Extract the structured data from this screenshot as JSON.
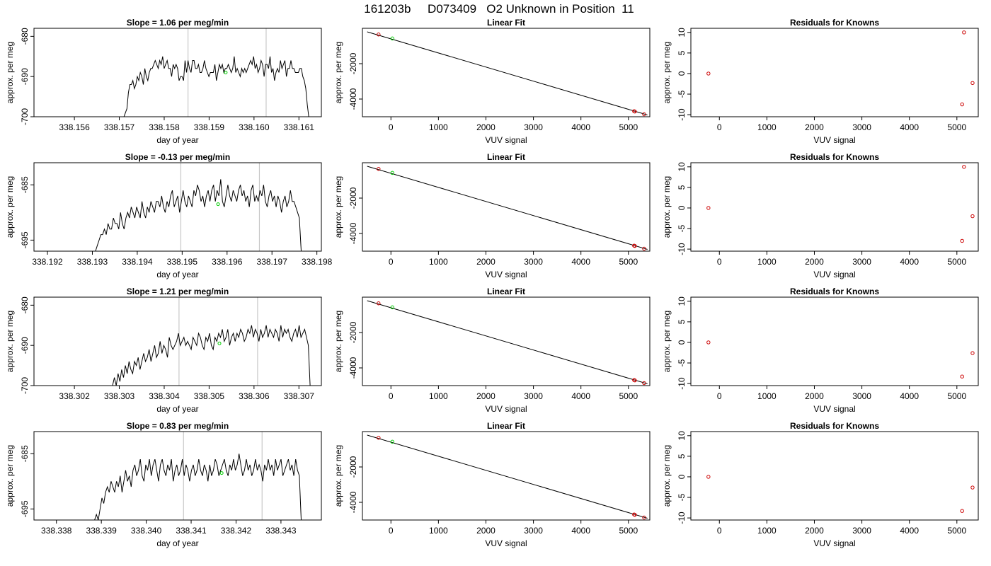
{
  "figure_title": "161203b     D073409   O2 Unknown in Position  11",
  "chart_data": [
    {
      "type": "line",
      "panel": "slope",
      "row": 1,
      "title": "Slope =  1.06  per meg/min",
      "xlabel": "day of year",
      "ylabel": "approx. per meg",
      "xlim": [
        338.1551,
        338.1615
      ],
      "ylim": [
        -700,
        -678
      ],
      "xticks": [
        "338.156",
        "338.157",
        "338.158",
        "338.159",
        "338.160",
        "338.161"
      ],
      "yticks": [
        "-680",
        "-690",
        "-700"
      ],
      "series_start": 338.15707,
      "series_end": 338.16122,
      "y_values": [
        -700,
        -700,
        -699,
        -698,
        -694,
        -692,
        -692,
        -691,
        -693,
        -692,
        -690,
        -691,
        -689,
        -690,
        -692,
        -688,
        -690,
        -691,
        -689,
        -688,
        -688,
        -687,
        -686,
        -687,
        -688,
        -686,
        -687,
        -685,
        -688,
        -687,
        -686,
        -688,
        -688,
        -690,
        -687,
        -688,
        -687,
        -688,
        -691,
        -690,
        -690,
        -691,
        -686,
        -689,
        -686,
        -688,
        -689,
        -686,
        -686,
        -688,
        -688,
        -687,
        -689,
        -689,
        -688,
        -686,
        -688,
        -689,
        -690,
        -689,
        -689,
        -689,
        -687,
        -691,
        -689,
        -687,
        -688,
        -687,
        -689,
        -688,
        -688,
        -687,
        -688,
        -689,
        -688,
        -685,
        -689,
        -688,
        -689,
        -690,
        -688,
        -689,
        -688,
        -689,
        -688,
        -687,
        -686,
        -687,
        -685,
        -688,
        -687,
        -689,
        -688,
        -686,
        -687,
        -690,
        -687,
        -687,
        -688,
        -685,
        -689,
        -688,
        -691,
        -689,
        -688,
        -689,
        -686,
        -688,
        -687,
        -686,
        -690,
        -688,
        -688,
        -686,
        -688,
        -688,
        -689,
        -689,
        -689,
        -688,
        -688,
        -690,
        -691,
        -693,
        -697,
        -700
      ],
      "vlines": [
        338.15853,
        338.16027
      ],
      "marker": {
        "x": 338.15937,
        "y": -689,
        "color": "#00cc00"
      }
    },
    {
      "type": "scatter",
      "panel": "linear_fit",
      "row": 1,
      "title": "Linear Fit",
      "xlabel": "VUV signal",
      "ylabel": "approx. per meg",
      "xlim": [
        -600,
        5450
      ],
      "ylim": [
        -5000,
        0
      ],
      "xticks": [
        "0",
        "1000",
        "2000",
        "3000",
        "4000",
        "5000"
      ],
      "yticks": [
        "-2000",
        "-4000"
      ],
      "line": {
        "x": [
          -500,
          5400
        ],
        "y": [
          -200,
          -4900
        ]
      },
      "points": [
        {
          "x": -260,
          "y": -350
        },
        {
          "x": 5120,
          "y": -4690
        },
        {
          "x": 5135,
          "y": -4705
        },
        {
          "x": 5330,
          "y": -4860
        }
      ],
      "unknown": {
        "x": 30,
        "y": -575
      },
      "point_color": "#cc0000",
      "unknown_color": "#00cc00"
    },
    {
      "type": "scatter",
      "panel": "residuals",
      "row": 1,
      "title": "Residuals for Knowns",
      "xlabel": "VUV signal",
      "ylabel": "approx. per meg",
      "xlim": [
        -600,
        5450
      ],
      "ylim": [
        -10.5,
        11
      ],
      "xticks": [
        "0",
        "1000",
        "2000",
        "3000",
        "4000",
        "5000"
      ],
      "yticks": [
        "10",
        "5",
        "0",
        "-5",
        "-10"
      ],
      "points": [
        {
          "x": -230,
          "y": 0
        },
        {
          "x": 5150,
          "y": 10
        },
        {
          "x": 5110,
          "y": -7.5
        },
        {
          "x": 5330,
          "y": -2.3
        }
      ],
      "point_color": "#cc0000"
    },
    {
      "type": "line",
      "panel": "slope",
      "row": 2,
      "title": "Slope =  -0.13  per meg/min",
      "xlabel": "day of year",
      "ylabel": "approx. per meg",
      "xlim": [
        338.1917,
        338.1981
      ],
      "ylim": [
        -697,
        -681
      ],
      "xticks": [
        "338.192",
        "338.193",
        "338.194",
        "338.195",
        "338.196",
        "338.197",
        "338.198"
      ],
      "yticks": [
        "-685",
        "-695"
      ],
      "series_start": 338.19307,
      "series_end": 338.19765,
      "y_values": [
        -697,
        -696,
        -695,
        -694,
        -694,
        -693,
        -694,
        -692,
        -693,
        -693,
        -691,
        -692,
        -692,
        -693,
        -690,
        -692,
        -693,
        -691,
        -690,
        -691,
        -689,
        -690,
        -691,
        -689,
        -690,
        -691,
        -688,
        -690,
        -691,
        -689,
        -690,
        -688,
        -689,
        -690,
        -688,
        -688,
        -689,
        -687,
        -689,
        -690,
        -688,
        -689,
        -687,
        -686,
        -689,
        -688,
        -687,
        -690,
        -688,
        -686,
        -688,
        -689,
        -687,
        -688,
        -689,
        -686,
        -687,
        -685,
        -686,
        -688,
        -687,
        -689,
        -687,
        -686,
        -688,
        -686,
        -685,
        -688,
        -686,
        -687,
        -684,
        -688,
        -689,
        -687,
        -685,
        -687,
        -688,
        -686,
        -687,
        -688,
        -686,
        -685,
        -687,
        -686,
        -688,
        -687,
        -689,
        -686,
        -685,
        -688,
        -687,
        -688,
        -686,
        -687,
        -685,
        -688,
        -689,
        -687,
        -686,
        -688,
        -687,
        -689,
        -687,
        -688,
        -690,
        -688,
        -687,
        -689,
        -688,
        -686,
        -688,
        -688,
        -689,
        -690,
        -691,
        -697
      ],
      "vlines": [
        338.19497,
        338.19672
      ],
      "marker": {
        "x": 338.1958,
        "y": -688.5,
        "color": "#00cc00"
      }
    },
    {
      "type": "scatter",
      "panel": "linear_fit",
      "row": 2,
      "title": "Linear Fit",
      "xlabel": "VUV signal",
      "ylabel": "approx. per meg",
      "xlim": [
        -600,
        5450
      ],
      "ylim": [
        -5000,
        0
      ],
      "xticks": [
        "0",
        "1000",
        "2000",
        "3000",
        "4000",
        "5000"
      ],
      "yticks": [
        "-2000",
        "-4000"
      ],
      "line": {
        "x": [
          -500,
          5400
        ],
        "y": [
          -200,
          -4900
        ]
      },
      "points": [
        {
          "x": -260,
          "y": -350
        },
        {
          "x": 5120,
          "y": -4690
        },
        {
          "x": 5135,
          "y": -4705
        },
        {
          "x": 5330,
          "y": -4860
        }
      ],
      "unknown": {
        "x": 30,
        "y": -575
      },
      "point_color": "#cc0000",
      "unknown_color": "#00cc00"
    },
    {
      "type": "scatter",
      "panel": "residuals",
      "row": 2,
      "title": "Residuals for Knowns",
      "xlabel": "VUV signal",
      "ylabel": "approx. per meg",
      "xlim": [
        -600,
        5450
      ],
      "ylim": [
        -10.5,
        11
      ],
      "xticks": [
        "0",
        "1000",
        "2000",
        "3000",
        "4000",
        "5000"
      ],
      "yticks": [
        "10",
        "5",
        "0",
        "-5",
        "-10"
      ],
      "points": [
        {
          "x": -230,
          "y": 0
        },
        {
          "x": 5150,
          "y": 10
        },
        {
          "x": 5110,
          "y": -8
        },
        {
          "x": 5330,
          "y": -2
        }
      ],
      "point_color": "#cc0000"
    },
    {
      "type": "line",
      "panel": "slope",
      "row": 3,
      "title": "Slope =  1.21  per meg/min",
      "xlabel": "day of year",
      "ylabel": "approx. per meg",
      "xlim": [
        338.3011,
        338.3075
      ],
      "ylim": [
        -700,
        -678
      ],
      "xticks": [
        "338.302",
        "338.303",
        "338.304",
        "338.305",
        "338.306",
        "338.307"
      ],
      "yticks": [
        "-680",
        "-690",
        "-700"
      ],
      "series_start": 338.30285,
      "series_end": 338.30725,
      "y_values": [
        -700,
        -698,
        -700,
        -697,
        -699,
        -696,
        -698,
        -695,
        -697,
        -694,
        -696,
        -697,
        -694,
        -695,
        -693,
        -696,
        -694,
        -692,
        -694,
        -693,
        -691,
        -694,
        -692,
        -690,
        -693,
        -692,
        -689,
        -692,
        -690,
        -691,
        -693,
        -688,
        -690,
        -691,
        -690,
        -689,
        -687,
        -690,
        -689,
        -688,
        -690,
        -689,
        -690,
        -691,
        -688,
        -689,
        -690,
        -687,
        -688,
        -690,
        -691,
        -688,
        -689,
        -687,
        -690,
        -691,
        -688,
        -689,
        -687,
        -688,
        -686,
        -689,
        -688,
        -686,
        -690,
        -688,
        -687,
        -689,
        -687,
        -688,
        -686,
        -687,
        -689,
        -688,
        -686,
        -687,
        -685,
        -688,
        -686,
        -687,
        -689,
        -686,
        -688,
        -687,
        -685,
        -688,
        -686,
        -687,
        -688,
        -686,
        -687,
        -689,
        -685,
        -688,
        -686,
        -687,
        -686,
        -688,
        -689,
        -687,
        -686,
        -688,
        -685,
        -688,
        -687,
        -686,
        -688,
        -690,
        -700
      ],
      "vlines": [
        338.30433,
        338.30608
      ],
      "marker": {
        "x": 338.30523,
        "y": -689.5,
        "color": "#00cc00"
      }
    },
    {
      "type": "scatter",
      "panel": "linear_fit",
      "row": 3,
      "title": "Linear Fit",
      "xlabel": "VUV signal",
      "ylabel": "approx. per meg",
      "xlim": [
        -600,
        5450
      ],
      "ylim": [
        -5000,
        0
      ],
      "xticks": [
        "0",
        "1000",
        "2000",
        "3000",
        "4000",
        "5000"
      ],
      "yticks": [
        "-2000",
        "-4000"
      ],
      "line": {
        "x": [
          -500,
          5400
        ],
        "y": [
          -200,
          -4900
        ]
      },
      "points": [
        {
          "x": -260,
          "y": -350
        },
        {
          "x": 5120,
          "y": -4690
        },
        {
          "x": 5135,
          "y": -4705
        },
        {
          "x": 5330,
          "y": -4860
        }
      ],
      "unknown": {
        "x": 30,
        "y": -575
      },
      "point_color": "#cc0000",
      "unknown_color": "#00cc00"
    },
    {
      "type": "scatter",
      "panel": "residuals",
      "row": 3,
      "title": "Residuals for Knowns",
      "xlabel": "VUV signal",
      "ylabel": "approx. per meg",
      "xlim": [
        -600,
        5450
      ],
      "ylim": [
        -10.5,
        11
      ],
      "xticks": [
        "0",
        "1000",
        "2000",
        "3000",
        "4000",
        "5000"
      ],
      "yticks": [
        "10",
        "5",
        "0",
        "-5",
        "-10"
      ],
      "points": [
        {
          "x": -230,
          "y": 0
        },
        {
          "x": 5110,
          "y": -8.3
        },
        {
          "x": 5330,
          "y": -2.6
        }
      ],
      "point_color": "#cc0000"
    },
    {
      "type": "line",
      "panel": "slope",
      "row": 4,
      "title": "Slope =  0.83  per meg/min",
      "xlabel": "day of year",
      "ylabel": "approx. per meg",
      "xlim": [
        338.3375,
        338.3439
      ],
      "ylim": [
        -697,
        -681
      ],
      "xticks": [
        "338.338",
        "338.339",
        "338.340",
        "338.341",
        "338.342",
        "338.343"
      ],
      "yticks": [
        "-685",
        "-695"
      ],
      "series_start": 338.33885,
      "series_end": 338.34345,
      "y_values": [
        -697,
        -696,
        -697,
        -695,
        -693,
        -694,
        -692,
        -691,
        -692,
        -690,
        -691,
        -692,
        -690,
        -691,
        -689,
        -692,
        -690,
        -688,
        -690,
        -689,
        -691,
        -688,
        -687,
        -689,
        -688,
        -686,
        -689,
        -690,
        -687,
        -688,
        -686,
        -689,
        -687,
        -686,
        -688,
        -690,
        -687,
        -686,
        -688,
        -689,
        -687,
        -688,
        -686,
        -690,
        -688,
        -687,
        -689,
        -688,
        -686,
        -689,
        -687,
        -688,
        -690,
        -688,
        -687,
        -689,
        -688,
        -686,
        -688,
        -689,
        -687,
        -688,
        -690,
        -687,
        -689,
        -688,
        -686,
        -687,
        -689,
        -688,
        -687,
        -686,
        -688,
        -689,
        -687,
        -688,
        -686,
        -688,
        -687,
        -685,
        -687,
        -689,
        -688,
        -686,
        -688,
        -687,
        -689,
        -688,
        -686,
        -688,
        -687,
        -688,
        -690,
        -687,
        -688,
        -686,
        -688,
        -687,
        -689,
        -686,
        -688,
        -687,
        -686,
        -689,
        -688,
        -687,
        -686,
        -688,
        -687,
        -689,
        -686,
        -688,
        -689,
        -697
      ],
      "vlines": [
        338.34083,
        338.34258
      ],
      "marker": {
        "x": 338.34168,
        "y": -688.5,
        "color": "#00cc00"
      }
    },
    {
      "type": "scatter",
      "panel": "linear_fit",
      "row": 4,
      "title": "Linear Fit",
      "xlabel": "VUV signal",
      "ylabel": "approx. per meg",
      "xlim": [
        -600,
        5450
      ],
      "ylim": [
        -5000,
        0
      ],
      "xticks": [
        "0",
        "1000",
        "2000",
        "3000",
        "4000",
        "5000"
      ],
      "yticks": [
        "-2000",
        "-4000"
      ],
      "line": {
        "x": [
          -500,
          5400
        ],
        "y": [
          -200,
          -4900
        ]
      },
      "points": [
        {
          "x": -260,
          "y": -350
        },
        {
          "x": 5120,
          "y": -4690
        },
        {
          "x": 5135,
          "y": -4705
        },
        {
          "x": 5330,
          "y": -4860
        }
      ],
      "unknown": {
        "x": 30,
        "y": -575
      },
      "point_color": "#cc0000",
      "unknown_color": "#00cc00"
    },
    {
      "type": "scatter",
      "panel": "residuals",
      "row": 4,
      "title": "Residuals for Knowns",
      "xlabel": "VUV signal",
      "ylabel": "approx. per meg",
      "xlim": [
        -600,
        5450
      ],
      "ylim": [
        -10.5,
        11
      ],
      "xticks": [
        "0",
        "1000",
        "2000",
        "3000",
        "4000",
        "5000"
      ],
      "yticks": [
        "10",
        "5",
        "0",
        "-5",
        "-10"
      ],
      "points": [
        {
          "x": -230,
          "y": 0
        },
        {
          "x": 5110,
          "y": -8.3
        },
        {
          "x": 5330,
          "y": -2.6
        }
      ],
      "point_color": "#cc0000"
    }
  ]
}
